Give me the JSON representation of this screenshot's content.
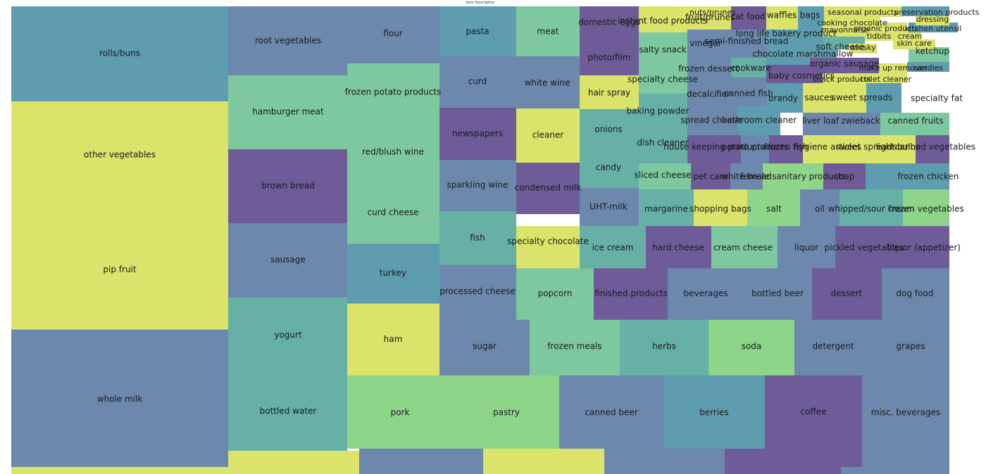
{
  "chart_data": {
    "type": "treemap",
    "title": "Item Description",
    "palette": [
      "#5e9cb0",
      "#dbe36a",
      "#6c88ad",
      "#6e5c98",
      "#7ec8a0",
      "#67b0a6",
      "#8ed58a"
    ],
    "items": [
      {
        "label": "rolls/buns",
        "value": 100
      },
      {
        "label": "other vegetables",
        "value": 100
      },
      {
        "label": "pip fruit",
        "value": 100
      },
      {
        "label": "whole milk",
        "value": 100
      },
      {
        "label": "root vegetables",
        "value": 60
      },
      {
        "label": "flour",
        "value": 60
      },
      {
        "label": "pasta",
        "value": 50
      },
      {
        "label": "meat",
        "value": 50
      },
      {
        "label": "domestic eggs",
        "value": 50
      },
      {
        "label": "instant food products",
        "value": 49
      },
      {
        "label": "fruit/prunes",
        "value": 49
      },
      {
        "label": "cat food",
        "value": 49
      },
      {
        "label": "waffles",
        "value": 49
      },
      {
        "label": "bags",
        "value": 49
      },
      {
        "label": "frozen potato products",
        "value": 50
      },
      {
        "label": "hamburger meat",
        "value": 50
      },
      {
        "label": "curd",
        "value": 50
      },
      {
        "label": "white wine",
        "value": 50
      },
      {
        "label": "photo/film",
        "value": 50
      },
      {
        "label": "salty snack",
        "value": 49
      },
      {
        "label": "vinegar",
        "value": 49
      },
      {
        "label": "semi-finished bread",
        "value": 49
      },
      {
        "label": "long life bakery product",
        "value": 49
      },
      {
        "label": "soft cheese",
        "value": 49
      },
      {
        "label": "chocolate marshmallow",
        "value": 49
      },
      {
        "label": "ketchup",
        "value": 49
      },
      {
        "label": "frozen dessert",
        "value": 49
      },
      {
        "label": "cookware",
        "value": 49
      },
      {
        "label": "organic sausage",
        "value": 49
      },
      {
        "label": "baby cosmetics",
        "value": 49
      },
      {
        "label": "specialty cheese",
        "value": 49
      },
      {
        "label": "hair spray",
        "value": 49
      },
      {
        "label": "decalcifier",
        "value": 49
      },
      {
        "label": "canned fish",
        "value": 49
      },
      {
        "label": "brandy",
        "value": 49
      },
      {
        "label": "sauces",
        "value": 49
      },
      {
        "label": "sweet spreads",
        "value": 49
      },
      {
        "label": "specialty fat",
        "value": 49
      },
      {
        "label": "coffee",
        "value": 80
      },
      {
        "label": "baking powder",
        "value": 49
      },
      {
        "label": "newspapers",
        "value": 50
      },
      {
        "label": "cleaner",
        "value": 50
      },
      {
        "label": "onions",
        "value": 50
      },
      {
        "label": "spread cheese",
        "value": 49
      },
      {
        "label": "bathroom cleaner",
        "value": 49
      },
      {
        "label": "liver loaf",
        "value": 49
      },
      {
        "label": "zwieback",
        "value": 49
      },
      {
        "label": "canned fruits",
        "value": 49
      },
      {
        "label": "brown bread",
        "value": 50
      },
      {
        "label": "red/blush wine",
        "value": 50
      },
      {
        "label": "dish cleaner",
        "value": 49
      },
      {
        "label": "house keeping products",
        "value": 49
      },
      {
        "label": "potato products",
        "value": 49
      },
      {
        "label": "frozen fish",
        "value": 49
      },
      {
        "label": "hygiene articles",
        "value": 49
      },
      {
        "label": "sweet spreads",
        "value": 49
      },
      {
        "label": "light bulbs",
        "value": 49
      },
      {
        "label": "canned vegetables",
        "value": 49
      },
      {
        "label": "candy",
        "value": 50
      },
      {
        "label": "sparkling wine",
        "value": 50
      },
      {
        "label": "condensed milk",
        "value": 50
      },
      {
        "label": "sliced cheese",
        "value": 49
      },
      {
        "label": "pet care",
        "value": 49
      },
      {
        "label": "white bread",
        "value": 49
      },
      {
        "label": "female sanitary products",
        "value": 49
      },
      {
        "label": "dog food",
        "value": 60
      },
      {
        "label": "soap",
        "value": 49
      },
      {
        "label": "frozen chicken",
        "value": 49
      },
      {
        "label": "curd cheese",
        "value": 50
      },
      {
        "label": "UHT-milk",
        "value": 50
      },
      {
        "label": "margarine",
        "value": 50
      },
      {
        "label": "shopping bags",
        "value": 50
      },
      {
        "label": "salt",
        "value": 50
      },
      {
        "label": "oil",
        "value": 50
      },
      {
        "label": "whipped/sour cream",
        "value": 50
      },
      {
        "label": "frozen vegetables",
        "value": 50
      },
      {
        "label": "sausage",
        "value": 50
      },
      {
        "label": "fish",
        "value": 50
      },
      {
        "label": "specialty chocolate",
        "value": 50
      },
      {
        "label": "ice cream",
        "value": 50
      },
      {
        "label": "hard cheese",
        "value": 50
      },
      {
        "label": "cream cheese",
        "value": 50
      },
      {
        "label": "liquor",
        "value": 50
      },
      {
        "label": "pickled vegetables",
        "value": 50
      },
      {
        "label": "liquor (appetizer)",
        "value": 50
      },
      {
        "label": "turkey",
        "value": 50
      },
      {
        "label": "processed cheese",
        "value": 50
      },
      {
        "label": "popcorn",
        "value": 50
      },
      {
        "label": "finished products",
        "value": 50
      },
      {
        "label": "beverages",
        "value": 50
      },
      {
        "label": "bottled beer",
        "value": 50
      },
      {
        "label": "dessert",
        "value": 50
      },
      {
        "label": "yogurt",
        "value": 50
      },
      {
        "label": "ham",
        "value": 50
      },
      {
        "label": "sugar",
        "value": 50
      },
      {
        "label": "frozen meals",
        "value": 50
      },
      {
        "label": "herbs",
        "value": 50
      },
      {
        "label": "soda",
        "value": 50
      },
      {
        "label": "detergent",
        "value": 50
      },
      {
        "label": "grapes",
        "value": 50
      },
      {
        "label": "bottled water",
        "value": 50
      },
      {
        "label": "pork",
        "value": 50
      },
      {
        "label": "pastry",
        "value": 50
      },
      {
        "label": "canned beer",
        "value": 50
      },
      {
        "label": "berries",
        "value": 50
      },
      {
        "label": "misc. beverages",
        "value": 50
      },
      {
        "label": "cooking chocolate",
        "value": 49
      },
      {
        "label": "mayonnaise",
        "value": 49
      },
      {
        "label": "organic products",
        "value": 49
      },
      {
        "label": "tidbits",
        "value": 49
      },
      {
        "label": "cream",
        "value": 49
      },
      {
        "label": "whisky",
        "value": 49
      },
      {
        "label": "kitchen utensil",
        "value": 49
      },
      {
        "label": "dressing",
        "value": 49
      },
      {
        "label": "preservation products",
        "value": 49
      },
      {
        "label": "snack products",
        "value": 49
      },
      {
        "label": "toilet cleaner",
        "value": 49
      },
      {
        "label": "candles",
        "value": 49
      },
      {
        "label": "make up remover",
        "value": 49
      },
      {
        "label": "skin care",
        "value": 49
      },
      {
        "label": "nuts/prunes",
        "value": 49
      },
      {
        "label": "seasonal products",
        "value": 49
      }
    ]
  }
}
